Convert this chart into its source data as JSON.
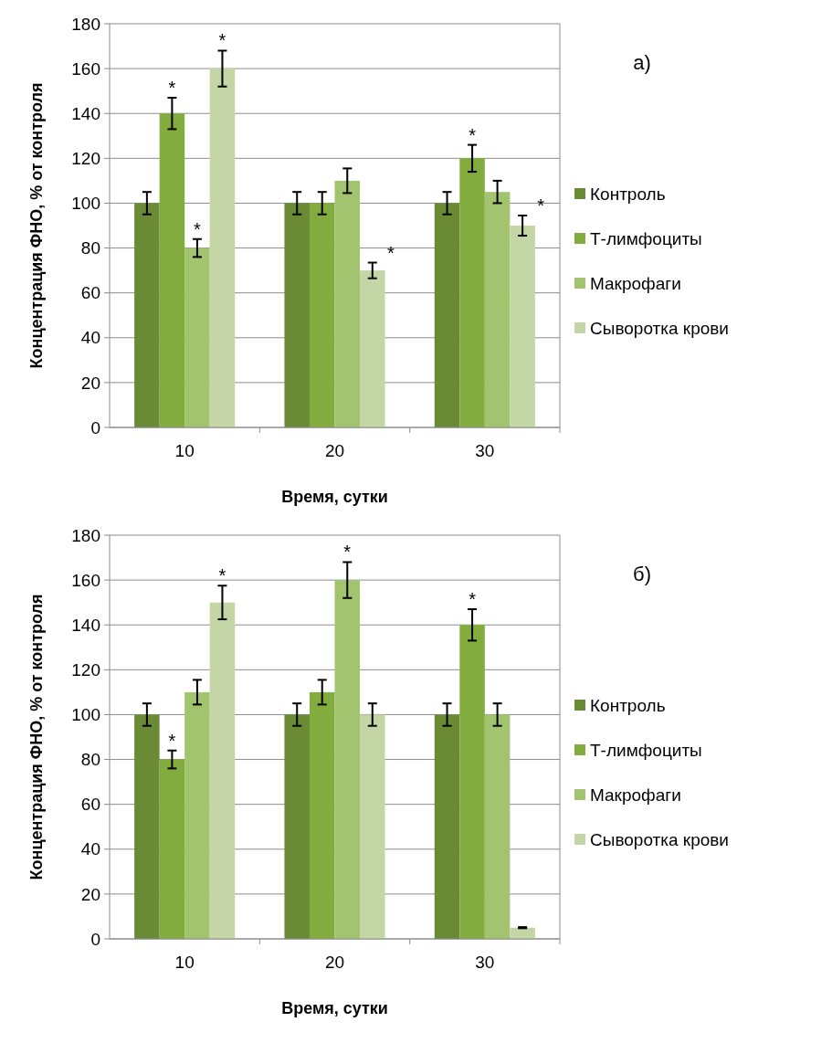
{
  "chart_data": [
    {
      "type": "bar",
      "annotations": [
        "а)"
      ],
      "xlabel": "Время, сутки",
      "ylabel": "Концентрация ФНО, % от контроля",
      "categories": [
        "10",
        "20",
        "30"
      ],
      "ylim": [
        0,
        180
      ],
      "yticks": [
        0,
        20,
        40,
        60,
        80,
        100,
        120,
        140,
        160,
        180
      ],
      "grid": "y",
      "legend": "right",
      "series": [
        {
          "name": "Контроль",
          "color": "#6a8a35",
          "values": [
            100,
            100,
            100
          ],
          "errors": [
            5,
            5,
            5
          ]
        },
        {
          "name": "Т-лимфоциты",
          "color": "#82ad3e",
          "values": [
            140,
            100,
            120
          ],
          "errors": [
            7,
            5,
            6
          ],
          "value_labels": [
            "*",
            null,
            "*"
          ]
        },
        {
          "name": "Макрофаги",
          "color": "#a3c46e",
          "values": [
            80,
            110,
            105
          ],
          "errors": [
            4,
            5.5,
            5
          ],
          "value_labels": [
            "*",
            null,
            null
          ]
        },
        {
          "name": "Сыворотка крови",
          "color": "#c5d6a6",
          "values": [
            160,
            70,
            90
          ],
          "errors": [
            8,
            3.5,
            4.5
          ],
          "value_labels": [
            "*",
            "*",
            "*"
          ]
        }
      ]
    },
    {
      "type": "bar",
      "annotations": [
        "б)"
      ],
      "xlabel": "Время, сутки",
      "ylabel": "Концентрация ФНО, % от контроля",
      "categories": [
        "10",
        "20",
        "30"
      ],
      "ylim": [
        0,
        180
      ],
      "yticks": [
        0,
        20,
        40,
        60,
        80,
        100,
        120,
        140,
        160,
        180
      ],
      "grid": "y",
      "legend": "right",
      "series": [
        {
          "name": "Контроль",
          "color": "#6a8a35",
          "values": [
            100,
            100,
            100
          ],
          "errors": [
            5,
            5,
            5
          ]
        },
        {
          "name": "Т-лимфоциты",
          "color": "#82ad3e",
          "values": [
            80,
            110,
            140
          ],
          "errors": [
            4,
            5.5,
            7
          ],
          "value_labels": [
            "*",
            null,
            "*"
          ]
        },
        {
          "name": "Макрофаги",
          "color": "#a3c46e",
          "values": [
            110,
            160,
            100
          ],
          "errors": [
            5.5,
            8,
            5
          ],
          "value_labels": [
            null,
            "*",
            null
          ]
        },
        {
          "name": "Сыворотка крови",
          "color": "#c5d6a6",
          "values": [
            150,
            100,
            5
          ],
          "errors": [
            7.5,
            5,
            0.25
          ],
          "value_labels": [
            "*",
            null,
            null
          ]
        }
      ]
    }
  ]
}
